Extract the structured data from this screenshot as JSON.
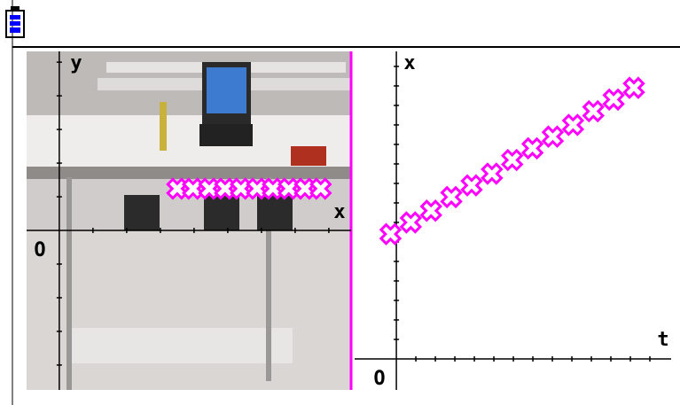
{
  "chart_data": [
    {
      "type": "scatter",
      "x_label": "x",
      "y_label": "y",
      "origin_label": "O",
      "color": "#ff00ff",
      "x": [
        3.5,
        3.97,
        4.45,
        4.92,
        5.39,
        5.87,
        6.34,
        6.81,
        7.29,
        7.76
      ],
      "y": [
        1.24,
        1.24,
        1.24,
        1.24,
        1.24,
        1.24,
        1.24,
        1.24,
        1.24,
        1.24
      ],
      "xlim": [
        -0.97,
        8.66
      ],
      "ylim": [
        -4.74,
        5.32
      ],
      "xticks": [
        1,
        2,
        3,
        4,
        5,
        6,
        7,
        8
      ],
      "yticks": [
        -4,
        -3,
        -2,
        -1,
        1,
        2,
        3,
        4,
        5
      ]
    },
    {
      "type": "scatter",
      "x_label": "t",
      "y_label": "x",
      "origin_label": "O",
      "color": "#ff00ff",
      "x": [
        -0.3,
        0.74,
        1.78,
        2.82,
        3.86,
        4.9,
        5.94,
        6.98,
        8.02,
        9.06,
        10.1,
        11.14,
        12.18
      ],
      "y": [
        6.4,
        7.0,
        7.6,
        8.3,
        8.9,
        9.5,
        10.2,
        10.8,
        11.4,
        12.0,
        12.7,
        13.3,
        13.9
      ],
      "xlim": [
        -2.14,
        14.09
      ],
      "ylim": [
        -1.59,
        15.77
      ],
      "xticks": [
        1,
        2,
        3,
        4,
        5,
        6,
        7,
        8,
        9,
        10,
        11,
        12,
        13
      ],
      "yticks": [
        1,
        2,
        3,
        4,
        5,
        6,
        7,
        8,
        9,
        10,
        11,
        12,
        13,
        14,
        15
      ]
    }
  ]
}
